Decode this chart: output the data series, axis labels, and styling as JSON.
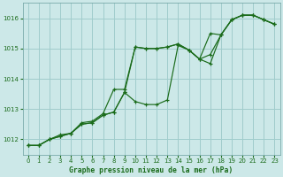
{
  "xlabel": "Graphe pression niveau de la mer (hPa)",
  "bg_color": "#cce8e8",
  "grid_color": "#a0cccc",
  "line_color": "#1a6b1a",
  "ylim": [
    1011.5,
    1016.5
  ],
  "xlim": [
    -0.5,
    23.5
  ],
  "yticks": [
    1012,
    1013,
    1014,
    1015,
    1016
  ],
  "xticks": [
    0,
    1,
    2,
    3,
    4,
    5,
    6,
    7,
    8,
    9,
    10,
    11,
    12,
    13,
    14,
    15,
    16,
    17,
    18,
    19,
    20,
    21,
    22,
    23
  ],
  "series": [
    [
      1011.8,
      1011.8,
      1012.0,
      1012.15,
      1012.2,
      1012.55,
      1012.6,
      1012.85,
      1013.65,
      1013.65,
      1015.05,
      1015.0,
      1015.0,
      1015.05,
      1015.15,
      1014.95,
      1014.65,
      1015.5,
      1015.45,
      1015.95,
      1016.1,
      1016.1,
      1015.95,
      1015.8
    ],
    [
      1011.8,
      1011.8,
      1012.0,
      1012.1,
      1012.2,
      1012.5,
      1012.55,
      1012.8,
      1012.9,
      1013.55,
      1013.25,
      1013.15,
      1013.15,
      1013.3,
      1015.1,
      1014.95,
      1014.65,
      1014.5,
      1015.45,
      1015.95,
      1016.1,
      1016.1,
      1015.95,
      1015.8
    ],
    [
      1011.8,
      1011.8,
      1012.0,
      1012.1,
      1012.2,
      1012.5,
      1012.55,
      1012.8,
      1012.9,
      1013.55,
      1015.05,
      1015.0,
      1015.0,
      1015.05,
      1015.15,
      1014.95,
      1014.65,
      1014.8,
      1015.45,
      1015.95,
      1016.1,
      1016.1,
      1015.95,
      1015.8
    ]
  ]
}
